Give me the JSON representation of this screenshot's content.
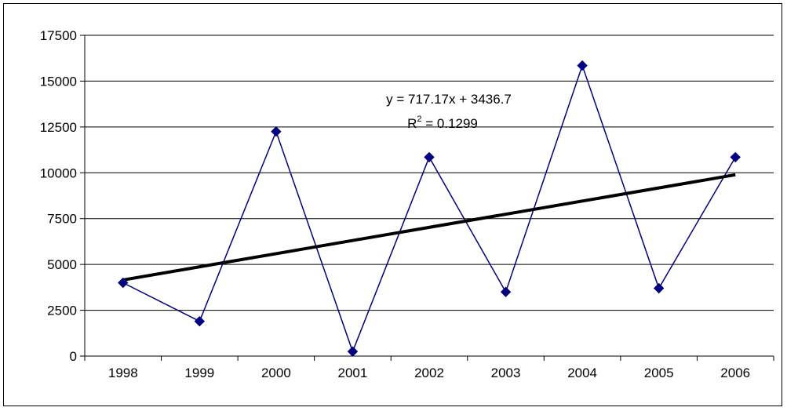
{
  "chart_data": {
    "type": "line",
    "title": "",
    "xlabel": "",
    "ylabel": "",
    "categories": [
      "1998",
      "1999",
      "2000",
      "2001",
      "2002",
      "2003",
      "2004",
      "2005",
      "2006"
    ],
    "series": [
      {
        "values": [
          4000,
          1900,
          12250,
          250,
          10850,
          3500,
          15850,
          3700,
          10850
        ],
        "color": "#000080",
        "marker": "diamond"
      }
    ],
    "trendline": {
      "type": "linear",
      "slope": 717.17,
      "intercept": 3436.7,
      "color": "#000000",
      "equation_label": "y = 717.17x + 3436.7",
      "r2_prefix": "R",
      "r2_exponent": "2",
      "r2_suffix": " = 0.1299"
    },
    "ylim": [
      0,
      17500
    ],
    "yticks": [
      0,
      2500,
      5000,
      7500,
      10000,
      12500,
      15000,
      17500
    ],
    "ytick_labels": [
      "0",
      "2500",
      "5000",
      "7500",
      "10000",
      "12500",
      "15000",
      "17500"
    ],
    "grid": true,
    "legend": "none"
  }
}
